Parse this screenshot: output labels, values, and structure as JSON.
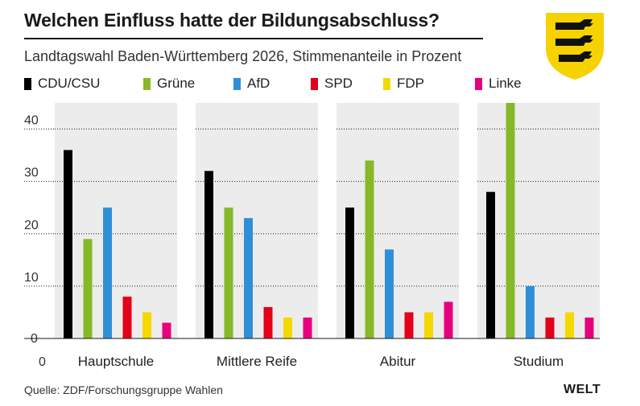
{
  "title": "Welchen Einfluss hatte der Bildungsabschluss?",
  "subtitle": "Landtagswahl Baden-Württemberg 2026, Stimmenanteile in Prozent",
  "source": "Quelle: ZDF/Forschungsgruppe Wahlen",
  "brand": "WELT",
  "colors": {
    "panel_bg": "#ececec",
    "grid": "#1a1a1a",
    "coat_gold": "#f6d200",
    "coat_lion": "#111111"
  },
  "chart_data": {
    "type": "bar",
    "grid": true,
    "legend_placement": "top-left",
    "ylim": [
      0,
      45
    ],
    "yticks": [
      0,
      10,
      20,
      30,
      40
    ],
    "ytick_labels": [
      "0",
      "10",
      "20",
      "30",
      "40"
    ],
    "y_zero_label": "0",
    "categories": [
      "Hauptschule",
      "Mittlere Reife",
      "Abitur",
      "Studium"
    ],
    "series": [
      {
        "name": "CDU/CSU",
        "color": "#000000",
        "values": [
          36,
          32,
          25,
          28
        ]
      },
      {
        "name": "Grüne",
        "color": "#86b928",
        "values": [
          19,
          25,
          34,
          45
        ]
      },
      {
        "name": "AfD",
        "color": "#2f8fd6",
        "values": [
          25,
          23,
          17,
          10
        ]
      },
      {
        "name": "SPD",
        "color": "#e2001a",
        "values": [
          8,
          6,
          5,
          4
        ]
      },
      {
        "name": "FDP",
        "color": "#f5d800",
        "values": [
          5,
          4,
          5,
          5
        ]
      },
      {
        "name": "Linke",
        "color": "#e6007e",
        "values": [
          3,
          4,
          7,
          4
        ]
      }
    ]
  }
}
